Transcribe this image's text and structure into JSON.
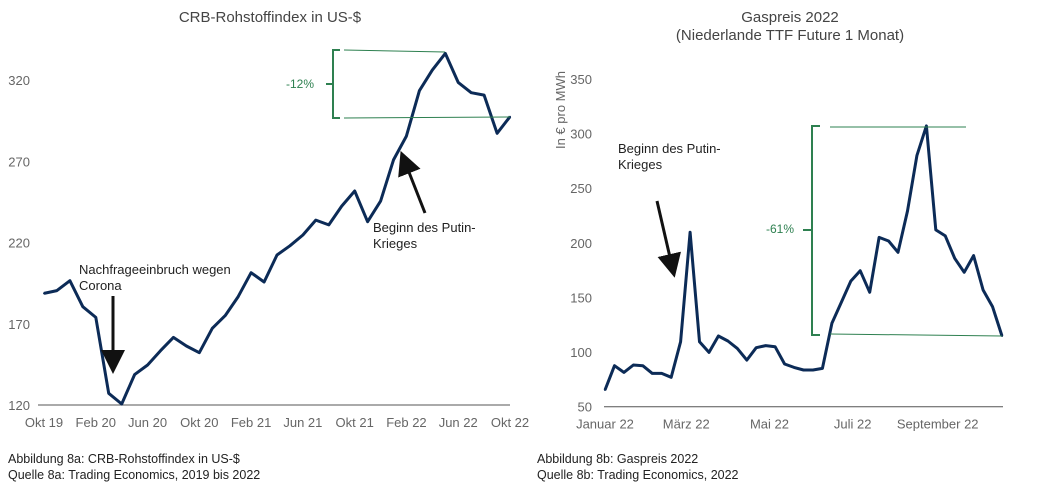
{
  "chart_data": [
    {
      "type": "line",
      "title": "CRB-Rohstoffindex in US-$",
      "xlabel": "",
      "ylabel": "",
      "ylim": [
        120,
        340
      ],
      "yticks": [
        120,
        170,
        220,
        270,
        320
      ],
      "xticks": [
        {
          "i": 0,
          "label": "Okt 19"
        },
        {
          "i": 4,
          "label": "Feb 20"
        },
        {
          "i": 8,
          "label": "Jun 20"
        },
        {
          "i": 12,
          "label": "Okt 20"
        },
        {
          "i": 16,
          "label": "Feb 21"
        },
        {
          "i": 20,
          "label": "Jun 21"
        },
        {
          "i": 24,
          "label": "Okt 21"
        },
        {
          "i": 28,
          "label": "Feb 22"
        },
        {
          "i": 32,
          "label": "Jun 22"
        },
        {
          "i": 36,
          "label": "Okt 22"
        }
      ],
      "values": [
        188.7,
        190.4,
        196.5,
        180.5,
        173.9,
        127.2,
        120.6,
        138.7,
        144.6,
        153.4,
        161.6,
        156.3,
        152.2,
        167.2,
        175,
        186.7,
        201.4,
        195.7,
        212.3,
        218,
        224.6,
        233.8,
        230.8,
        242.4,
        251.7,
        232.8,
        245.5,
        270.8,
        285.5,
        313.4,
        326.1,
        336.4,
        318.5,
        312.2,
        310.7,
        287.2,
        297.4
      ],
      "annotations": {
        "corona": [
          "Nachfrageeinbruch wegen",
          "Corona"
        ],
        "war": [
          "Beginn des Putin-",
          "Krieges"
        ],
        "change": "-12%"
      }
    },
    {
      "type": "line",
      "title": [
        "Gaspreis 2022",
        "(Niederlande TTF Future 1 Monat)"
      ],
      "xlabel": "",
      "ylabel": "In € pro MWh",
      "ylim": [
        50,
        350
      ],
      "yticks": [
        50,
        100,
        150,
        200,
        250,
        300,
        350
      ],
      "xticks": [
        {
          "i": 0,
          "label": "Januar 22"
        },
        {
          "i": 8.6,
          "label": "März 22"
        },
        {
          "i": 17.4,
          "label": "Mai 22"
        },
        {
          "i": 26.2,
          "label": "Juli 22"
        },
        {
          "i": 35.2,
          "label": "September 22"
        }
      ],
      "values": [
        65.3,
        87.5,
        81.4,
        88.2,
        87.5,
        80.5,
        80.5,
        76.9,
        109.5,
        209.6,
        109.5,
        99.7,
        114.7,
        110.1,
        103.4,
        92.7,
        104,
        105.9,
        104.9,
        89.1,
        86,
        83.6,
        83.6,
        85.1,
        126.3,
        145.5,
        165,
        174.5,
        154.7,
        205,
        201.7,
        191.3,
        229.1,
        279.8,
        307,
        211.8,
        206.3,
        185.8,
        173,
        188.3,
        156.8,
        141.6,
        114.7
      ],
      "annotations": {
        "war": [
          "Beginn des Putin-",
          "Krieges"
        ],
        "change": "-61%"
      }
    }
  ],
  "colors": {
    "line": "#0c2b57",
    "accent": "#2e8050"
  },
  "footer": {
    "left": [
      "Abbildung 8a: CRB-Rohstoffindex in US-$",
      "Quelle 8a: Trading Economics, 2019 bis 2022"
    ],
    "right": [
      "Abbildung 8b: Gaspreis 2022",
      "Quelle 8b: Trading Economics, 2022"
    ]
  }
}
